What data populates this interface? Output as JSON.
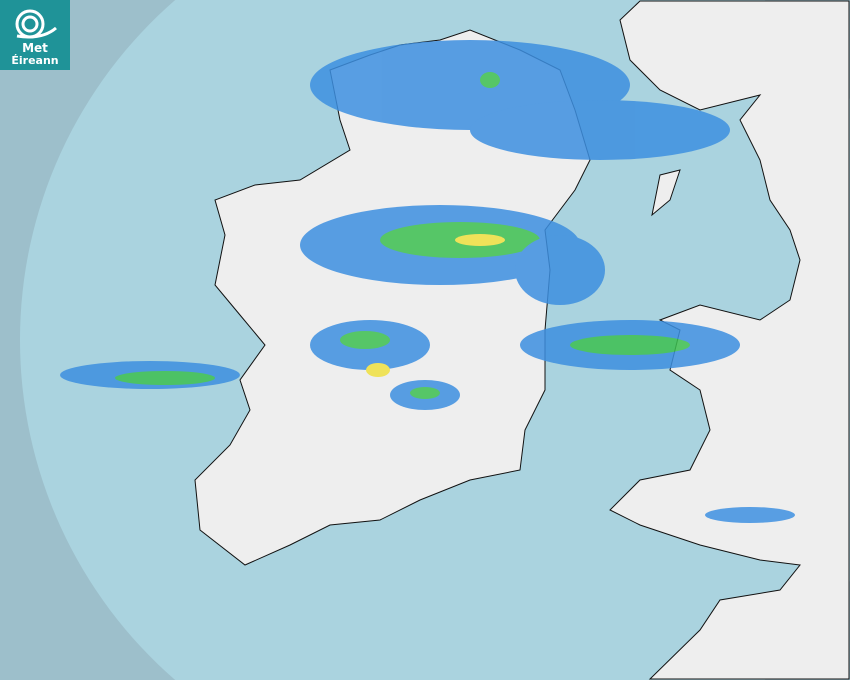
{
  "logo": {
    "line1": "Met",
    "line2": "Éireann",
    "brand_color": "#1f9398"
  },
  "map": {
    "type": "weather-radar",
    "colors": {
      "outside_range": "#9dbfcb",
      "radar_range": "#aad3df",
      "land": "#eeeeee",
      "rain_light": "#3d8fe0",
      "rain_moderate": "#3cc050",
      "rain_heavy": "#f0e040"
    }
  }
}
